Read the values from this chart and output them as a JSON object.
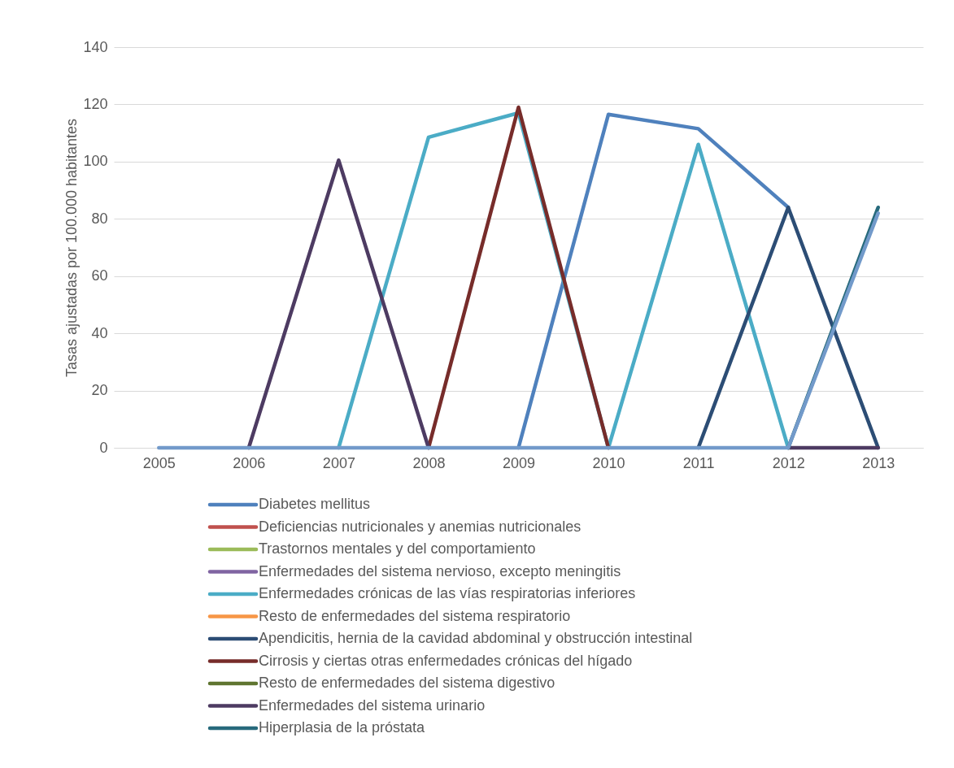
{
  "chart_data": {
    "type": "line",
    "ylabel": "Tasas ajustadas por 100.000 habitantes",
    "categories": [
      "2005",
      "2006",
      "2007",
      "2008",
      "2009",
      "2010",
      "2011",
      "2012",
      "2013"
    ],
    "ylim": [
      0,
      140
    ],
    "yticks": [
      0,
      20,
      40,
      60,
      80,
      100,
      120,
      140
    ],
    "grid": "y",
    "legend": "bottom",
    "marker": "none",
    "line_style": "solid",
    "series": [
      {
        "name": "Diabetes mellitus",
        "color": "#4f81bd",
        "values": [
          null,
          null,
          null,
          null,
          0,
          116.5,
          111.5,
          84,
          null
        ]
      },
      {
        "name": "Deficiencias nutricionales y anemias nutricionales",
        "color": "#c0504d",
        "values": [
          null,
          null,
          null,
          null,
          null,
          null,
          null,
          null,
          null
        ]
      },
      {
        "name": "Trastornos mentales y del comportamiento",
        "color": "#9bbb59",
        "values": [
          null,
          null,
          null,
          null,
          null,
          null,
          null,
          null,
          null
        ]
      },
      {
        "name": "Enfermedades del sistema nervioso, excepto meningitis",
        "color": "#8064a2",
        "values": [
          null,
          null,
          null,
          null,
          null,
          null,
          null,
          null,
          null
        ]
      },
      {
        "name": "Enfermedades crónicas de las vías respiratorias inferiores",
        "color": "#4bacc6",
        "values": [
          null,
          null,
          0,
          108.5,
          117,
          0,
          106,
          0,
          null
        ]
      },
      {
        "name": "Resto de enfermedades del sistema respiratorio",
        "color": "#f79646",
        "values": [
          null,
          null,
          null,
          null,
          null,
          null,
          null,
          null,
          null
        ]
      },
      {
        "name": "Apendicitis, hernia de la cavidad abdominal y obstrucción intestinal",
        "color": "#2c4d75",
        "values": [
          null,
          null,
          null,
          null,
          null,
          null,
          0,
          84,
          0
        ]
      },
      {
        "name": "Cirrosis y ciertas otras enfermedades crónicas del hígado",
        "color": "#772c2a",
        "values": [
          null,
          null,
          null,
          0,
          119,
          0,
          null,
          null,
          null
        ]
      },
      {
        "name": "Resto de enfermedades del sistema digestivo",
        "color": "#5f7530",
        "values": [
          null,
          null,
          null,
          null,
          null,
          null,
          null,
          null,
          null
        ]
      },
      {
        "name": "Enfermedades del sistema urinario",
        "color": "#4d3b62",
        "values": [
          null,
          0,
          100.5,
          0,
          null,
          null,
          null,
          0,
          0
        ]
      },
      {
        "name": "Hiperplasia de la próstata",
        "color": "#276a7c",
        "values": [
          null,
          null,
          null,
          null,
          null,
          null,
          null,
          0,
          84
        ]
      },
      {
        "color": "#729aca",
        "values": [
          0,
          0,
          0,
          0,
          0,
          0,
          0,
          0,
          82
        ]
      }
    ]
  }
}
